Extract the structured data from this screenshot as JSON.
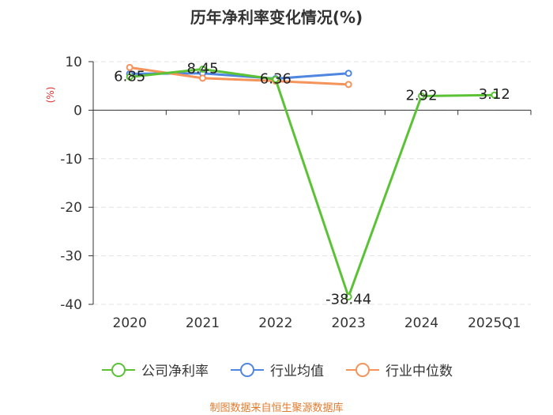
{
  "title": "历年净利率变化情况(%)",
  "source": "制图数据来自恒生聚源数据库",
  "chart_data": {
    "type": "line",
    "title": "历年净利率变化情况(%)",
    "ylabel": "(%)",
    "xlabel": "",
    "categories": [
      "2020",
      "2021",
      "2022",
      "2023",
      "2024",
      "2025Q1"
    ],
    "ylim": [
      -40,
      10
    ],
    "yticks": [
      10,
      0,
      -10,
      -20,
      -30,
      -40
    ],
    "grid": true,
    "legend_position": "bottom",
    "series": [
      {
        "name": "公司净利率",
        "color": "#5bc236",
        "values": [
          6.85,
          8.45,
          6.36,
          -38.44,
          2.92,
          3.12
        ]
      },
      {
        "name": "行业均值",
        "color": "#4f86e0",
        "values": [
          7.5,
          7.6,
          6.5,
          7.6,
          null,
          null
        ]
      },
      {
        "name": "行业中位数",
        "color": "#f4935a",
        "values": [
          8.8,
          6.6,
          6.0,
          5.3,
          null,
          null
        ]
      }
    ],
    "data_labels": [
      {
        "series": 0,
        "index": 0,
        "text": "6.85"
      },
      {
        "series": 0,
        "index": 1,
        "text": "8.45"
      },
      {
        "series": 0,
        "index": 2,
        "text": "6.36"
      },
      {
        "series": 0,
        "index": 3,
        "text": "-38.44"
      },
      {
        "series": 0,
        "index": 4,
        "text": "2.92"
      },
      {
        "series": 0,
        "index": 5,
        "text": "3.12"
      }
    ]
  }
}
